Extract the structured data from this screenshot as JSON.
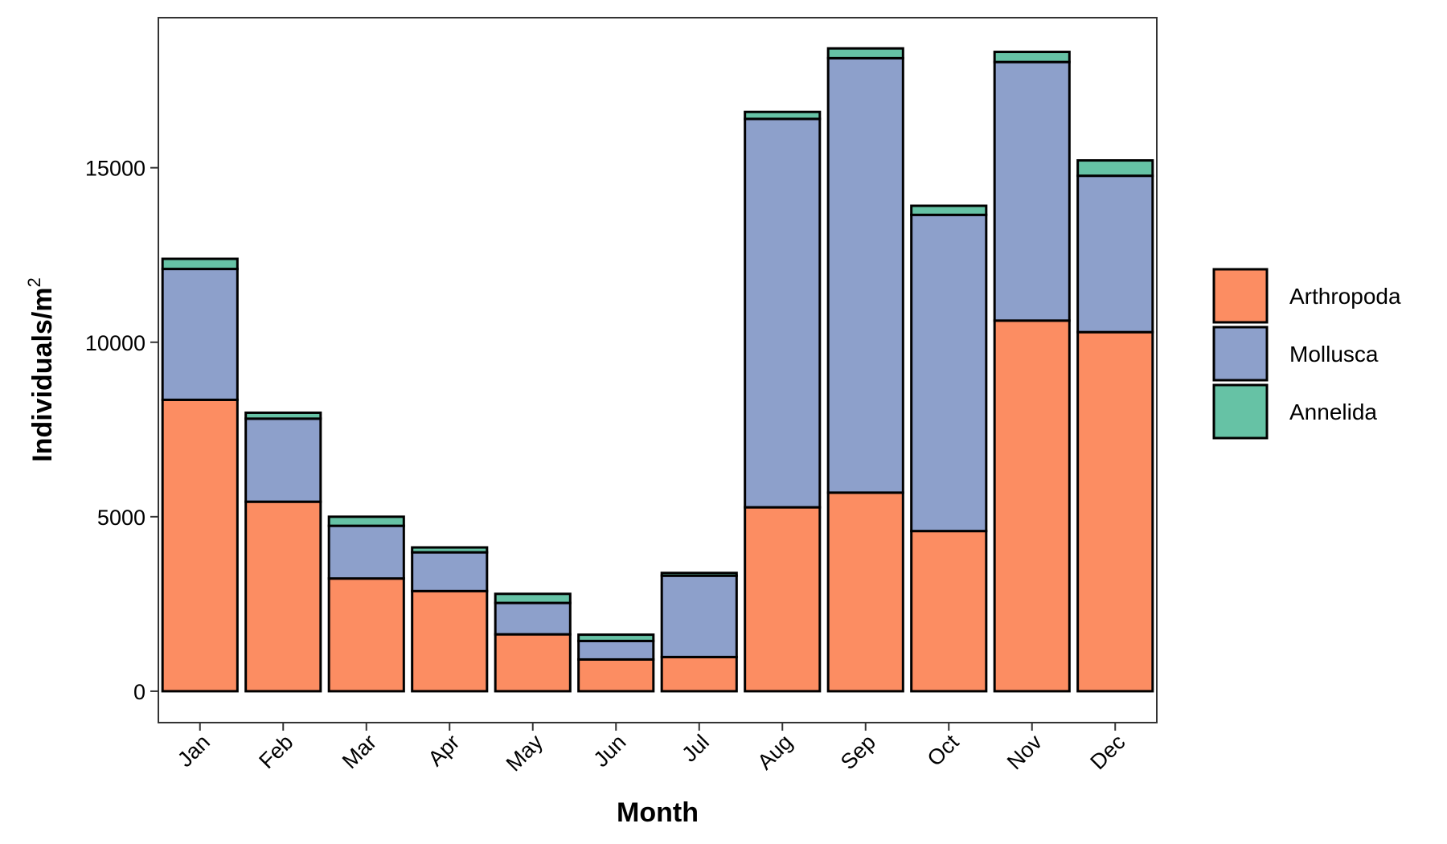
{
  "chart_data": {
    "type": "bar",
    "stacked": true,
    "categories": [
      "Jan",
      "Feb",
      "Mar",
      "Apr",
      "May",
      "Jun",
      "Jul",
      "Aug",
      "Sep",
      "Oct",
      "Nov",
      "Dec"
    ],
    "series": [
      {
        "name": "Arthropoda",
        "color": "#fc8d62",
        "values": [
          8350,
          5430,
          3230,
          2870,
          1630,
          910,
          980,
          5270,
          5690,
          4590,
          10620,
          10290
        ]
      },
      {
        "name": "Mollusca",
        "color": "#8da0cb",
        "values": [
          3750,
          2380,
          1510,
          1110,
          900,
          530,
          2330,
          11130,
          12450,
          9060,
          7410,
          4480
        ]
      },
      {
        "name": "Annelida",
        "color": "#66c2a5",
        "values": [
          290,
          170,
          260,
          140,
          260,
          180,
          80,
          200,
          280,
          260,
          290,
          440
        ]
      }
    ],
    "xlabel": "Month",
    "ylabel": "Individuals/m",
    "ylabel_superscript": "2",
    "yticks": [
      0,
      5000,
      10000,
      15000
    ],
    "ylim": [
      -900,
      19300
    ],
    "legend_position": "right",
    "grid": false
  }
}
